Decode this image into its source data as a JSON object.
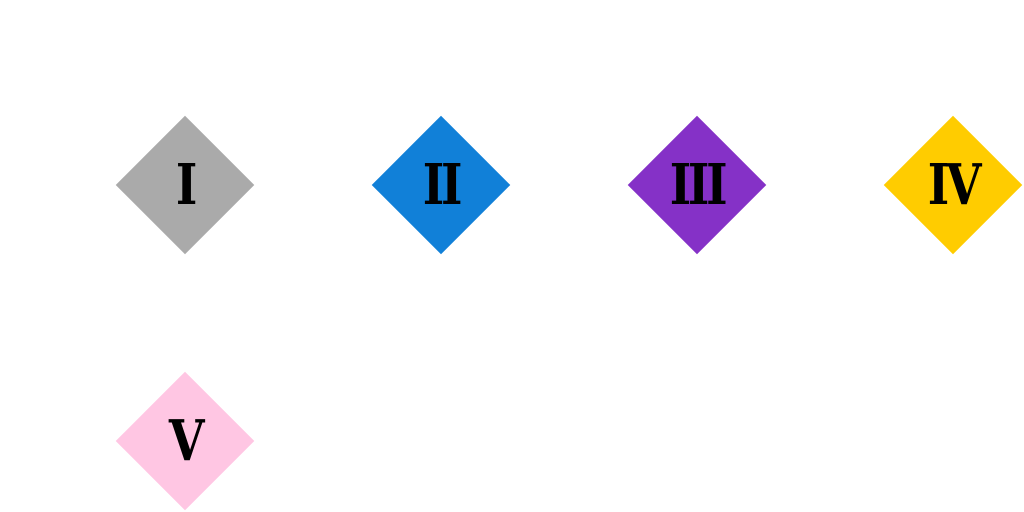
{
  "tiles": [
    {
      "label": "I",
      "color": "#aaaaaa"
    },
    {
      "label": "II",
      "color": "#1180d8"
    },
    {
      "label": "III",
      "color": "#8531c7"
    },
    {
      "label": "IV",
      "color": "#ffcc00"
    },
    {
      "label": "V",
      "color": "#ffc6e3"
    }
  ]
}
